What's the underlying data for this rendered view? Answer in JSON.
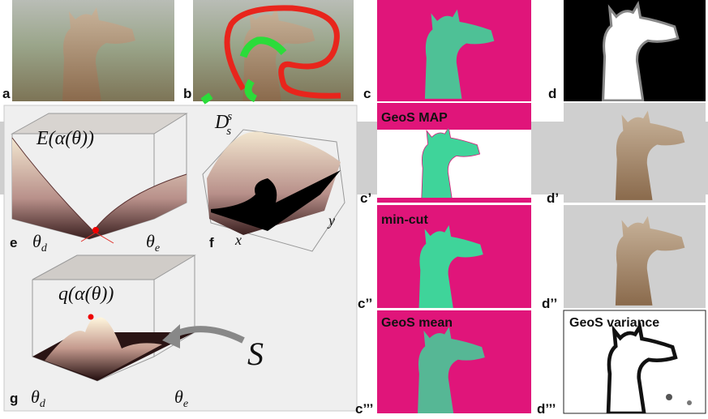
{
  "panels": {
    "a": {
      "label": "a"
    },
    "b": {
      "label": "b"
    },
    "c": {
      "label": "c"
    },
    "d": {
      "label": "d"
    },
    "e": {
      "label": "e",
      "title": "E(α(θ))",
      "x_axis": "θ",
      "x_sub": "d",
      "y_axis": "θ",
      "y_sub": "e"
    },
    "f": {
      "label": "f",
      "symbol": "D",
      "sub": "s",
      "sup": "s",
      "x_axis": "x",
      "y_axis": "y"
    },
    "g": {
      "label": "g",
      "title": "q(α(θ))",
      "x_axis": "θ",
      "x_sub": "d",
      "y_axis": "θ",
      "y_sub": "e",
      "annotation": "S"
    },
    "c1": {
      "label": "c’",
      "title": "GeoS  MAP"
    },
    "d1": {
      "label": "d’"
    },
    "c2": {
      "label": "c’’",
      "title": "min-cut"
    },
    "d2": {
      "label": "d’’"
    },
    "c3": {
      "label": "c’’’",
      "title": "GeoS mean"
    },
    "d3": {
      "label": "d’’’",
      "title": "GeoS variance"
    }
  }
}
